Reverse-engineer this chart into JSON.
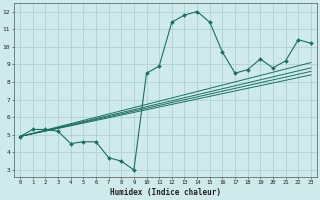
{
  "xlabel": "Humidex (Indice chaleur)",
  "bg_color": "#ceeaea",
  "grid_color": "#aacccc",
  "line_color": "#1a7060",
  "xticks": [
    0,
    1,
    2,
    3,
    4,
    5,
    6,
    7,
    8,
    9,
    10,
    11,
    12,
    13,
    14,
    15,
    16,
    17,
    18,
    19,
    20,
    21,
    22,
    23
  ],
  "yticks": [
    3,
    4,
    5,
    6,
    7,
    8,
    9,
    10,
    11,
    12
  ],
  "xlim": [
    -0.5,
    23.5
  ],
  "ylim": [
    2.6,
    12.5
  ],
  "main_series": {
    "x": [
      0,
      1,
      2,
      3,
      4,
      5,
      6,
      7,
      8,
      9,
      10,
      11,
      12,
      13,
      14,
      15,
      16,
      17,
      18,
      19,
      20,
      21,
      22,
      23
    ],
    "y": [
      4.9,
      5.3,
      5.3,
      5.2,
      4.5,
      4.6,
      4.6,
      3.7,
      3.5,
      3.0,
      8.5,
      8.9,
      11.4,
      11.8,
      12.0,
      11.4,
      9.7,
      8.5,
      8.7,
      9.3,
      8.8,
      9.2,
      10.4,
      10.2
    ]
  },
  "trend_lines": [
    {
      "x": [
        0,
        23
      ],
      "y": [
        4.9,
        9.1
      ]
    },
    {
      "x": [
        0,
        23
      ],
      "y": [
        4.9,
        8.8
      ]
    },
    {
      "x": [
        0,
        23
      ],
      "y": [
        4.9,
        8.6
      ]
    },
    {
      "x": [
        0,
        23
      ],
      "y": [
        4.9,
        8.4
      ]
    }
  ]
}
